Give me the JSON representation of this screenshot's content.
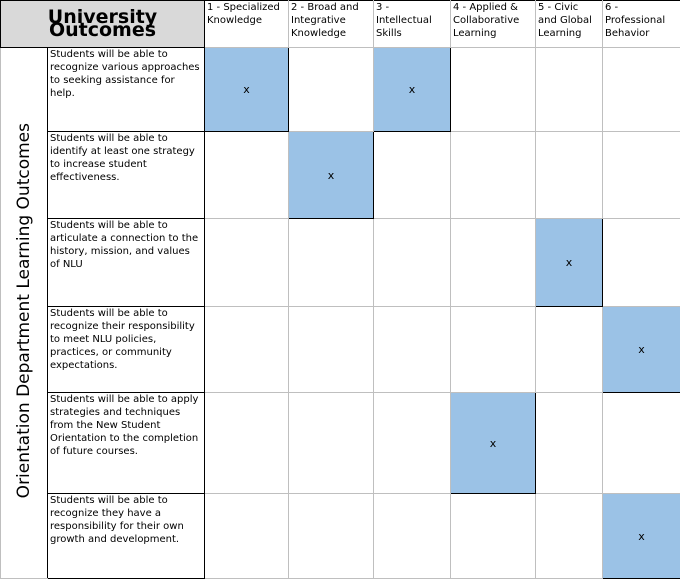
{
  "table": {
    "title": "University Outcomes",
    "side_label": "Orientation Department Learning Outcomes",
    "columns": [
      "1 - Specialized Knowledge",
      "2 - Broad and Integrative Knowledge",
      "3 - Intellectual Skills",
      "4 - Applied & Collaborative Learning",
      "5 - Civic and Global Learning",
      "6 - Professional Behavior"
    ],
    "rows": [
      {
        "outcome": "Students will be able to recognize various approaches to seeking assistance for help.",
        "cells": [
          "x",
          null,
          "x",
          null,
          null,
          null
        ]
      },
      {
        "outcome": "Students will be able to identify at least one strategy to increase student effectiveness.",
        "cells": [
          null,
          "x",
          null,
          null,
          null,
          null
        ]
      },
      {
        "outcome": "Students will be able to articulate a connection to the history, mission, and values of NLU",
        "cells": [
          null,
          null,
          null,
          null,
          "x",
          null
        ]
      },
      {
        "outcome": "Students will be able to recognize their responsibility to meet NLU policies, practices, or community expectations.",
        "cells": [
          null,
          null,
          null,
          null,
          null,
          "x"
        ]
      },
      {
        "outcome": "Students will be able to apply strategies and techniques from the New Student Orientation to the completion of future courses.",
        "cells": [
          null,
          null,
          null,
          "x",
          null,
          null
        ]
      },
      {
        "outcome": "Students will be able to recognize they have a responsibility for their own growth and development.",
        "cells": [
          null,
          null,
          null,
          null,
          null,
          "x"
        ]
      }
    ]
  }
}
